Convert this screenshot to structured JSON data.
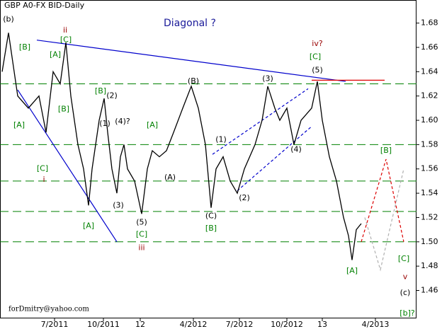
{
  "chart_data": {
    "type": "line",
    "header": "GBP A0-FX BID-Daily",
    "title": "Diagonal ?",
    "footer": "forDmitry@yahoo.com",
    "color": "#000000",
    "x": [
      3,
      12,
      25,
      40,
      55,
      65,
      75,
      85,
      93,
      100,
      110,
      118,
      125,
      130,
      135,
      140,
      147,
      152,
      158,
      165,
      170,
      175,
      180,
      190,
      200,
      208,
      215,
      225,
      235,
      245,
      258,
      270,
      280,
      290,
      298,
      305,
      315,
      325,
      335,
      345,
      360,
      370,
      378,
      388,
      395,
      405,
      415,
      425,
      440,
      448,
      455,
      465,
      475,
      485,
      492,
      497,
      503,
      510
    ],
    "values": [
      1.64,
      1.672,
      1.62,
      1.61,
      1.62,
      1.59,
      1.64,
      1.63,
      1.664,
      1.62,
      1.58,
      1.56,
      1.53,
      1.56,
      1.58,
      1.6,
      1.618,
      1.59,
      1.56,
      1.54,
      1.57,
      1.58,
      1.56,
      1.55,
      1.523,
      1.56,
      1.575,
      1.57,
      1.575,
      1.59,
      1.61,
      1.628,
      1.61,
      1.58,
      1.528,
      1.56,
      1.57,
      1.55,
      1.54,
      1.56,
      1.58,
      1.6,
      1.628,
      1.61,
      1.6,
      1.61,
      1.58,
      1.6,
      1.61,
      1.632,
      1.6,
      1.57,
      1.55,
      1.52,
      1.505,
      1.485,
      1.51,
      1.515
    ],
    "xlim": [
      0,
      588
    ],
    "ylim": [
      1.437,
      1.699
    ],
    "xticks": [
      {
        "value": 77,
        "label": "7/2011"
      },
      {
        "value": 146,
        "label": "10/2011"
      },
      {
        "value": 198,
        "label": "12"
      },
      {
        "value": 273,
        "label": "4/2012"
      },
      {
        "value": 338,
        "label": "7/2012"
      },
      {
        "value": 405,
        "label": "10/2012"
      },
      {
        "value": 455,
        "label": "13"
      },
      {
        "value": 530,
        "label": "4/2013"
      }
    ],
    "yticks": [
      {
        "value": 1.46,
        "label": "1.46"
      },
      {
        "value": 1.48,
        "label": "1.48"
      },
      {
        "value": 1.5,
        "label": "1.50"
      },
      {
        "value": 1.52,
        "label": "1.52"
      },
      {
        "value": 1.54,
        "label": "1.54"
      },
      {
        "value": 1.56,
        "label": "1.56"
      },
      {
        "value": 1.58,
        "label": "1.58"
      },
      {
        "value": 1.6,
        "label": "1.60"
      },
      {
        "value": 1.62,
        "label": "1.62"
      },
      {
        "value": 1.64,
        "label": "1.64"
      },
      {
        "value": 1.66,
        "label": "1.66"
      },
      {
        "value": 1.68,
        "label": "1.68"
      }
    ],
    "levels": {
      "color": "#008000",
      "values": [
        1.63,
        1.58,
        1.55,
        1.525,
        1.5
      ]
    },
    "lines": [
      {
        "color": "#0000cc",
        "dash": false,
        "x": [
          52,
          488
        ],
        "y": [
          1.666,
          1.632
        ]
      },
      {
        "color": "#0000cc",
        "dash": false,
        "x": [
          25,
          165
        ],
        "y": [
          1.625,
          1.5
        ]
      },
      {
        "color": "#0000cc",
        "dash": true,
        "x": [
          300,
          435
        ],
        "y": [
          1.572,
          1.626
        ]
      },
      {
        "color": "#0000cc",
        "dash": true,
        "x": [
          335,
          440
        ],
        "y": [
          1.542,
          1.595
        ]
      },
      {
        "color": "#dd0000",
        "dash": false,
        "x": [
          440,
          543
        ],
        "y": [
          1.633,
          1.633
        ]
      },
      {
        "color": "#dd0000",
        "dash": true,
        "x": [
          510,
          545,
          570
        ],
        "y": [
          1.5,
          1.568,
          1.5
        ]
      },
      {
        "color": "#b0b0b0",
        "dash": true,
        "x": [
          515,
          537,
          570
        ],
        "y": [
          1.52,
          1.477,
          1.56
        ]
      }
    ],
    "annotations": [
      {
        "text": "(b)",
        "x": 12,
        "y": 1.683,
        "color": "#000000"
      },
      {
        "text": "ii",
        "x": 92,
        "y": 1.674,
        "color": "#990000"
      },
      {
        "text": "[C]",
        "x": 93,
        "y": 1.666,
        "color": "#008000"
      },
      {
        "text": "[B]",
        "x": 35,
        "y": 1.66,
        "color": "#008000"
      },
      {
        "text": "[A]",
        "x": 78,
        "y": 1.654,
        "color": "#008000"
      },
      {
        "text": "[B]",
        "x": 142,
        "y": 1.624,
        "color": "#008000"
      },
      {
        "text": "(2)",
        "x": 158,
        "y": 1.62,
        "color": "#000000"
      },
      {
        "text": "[B]",
        "x": 90,
        "y": 1.609,
        "color": "#008000"
      },
      {
        "text": "[A]",
        "x": 27,
        "y": 1.596,
        "color": "#008000"
      },
      {
        "text": "[C]",
        "x": 60,
        "y": 1.56,
        "color": "#008000"
      },
      {
        "text": "i",
        "x": 62,
        "y": 1.551,
        "color": "#990000"
      },
      {
        "text": "(1)",
        "x": 148,
        "y": 1.597,
        "color": "#000000"
      },
      {
        "text": "(4)?",
        "x": 173,
        "y": 1.599,
        "color": "#000000"
      },
      {
        "text": "[A]",
        "x": 215,
        "y": 1.596,
        "color": "#008000"
      },
      {
        "text": "(A)",
        "x": 240,
        "y": 1.553,
        "color": "#000000"
      },
      {
        "text": "(3)",
        "x": 167,
        "y": 1.53,
        "color": "#000000"
      },
      {
        "text": "[A]",
        "x": 125,
        "y": 1.513,
        "color": "#008000"
      },
      {
        "text": "(5)",
        "x": 200,
        "y": 1.516,
        "color": "#000000"
      },
      {
        "text": "[C]",
        "x": 200,
        "y": 1.506,
        "color": "#008000"
      },
      {
        "text": "iii",
        "x": 200,
        "y": 1.495,
        "color": "#990000"
      },
      {
        "text": "(B)",
        "x": 273,
        "y": 1.632,
        "color": "#000000"
      },
      {
        "text": "(1)",
        "x": 312,
        "y": 1.584,
        "color": "#000000"
      },
      {
        "text": "(2)",
        "x": 345,
        "y": 1.536,
        "color": "#000000"
      },
      {
        "text": "(C)",
        "x": 298,
        "y": 1.521,
        "color": "#000000"
      },
      {
        "text": "[B]",
        "x": 298,
        "y": 1.511,
        "color": "#008000"
      },
      {
        "text": "(3)",
        "x": 378,
        "y": 1.634,
        "color": "#000000"
      },
      {
        "text": "(4)",
        "x": 418,
        "y": 1.576,
        "color": "#000000"
      },
      {
        "text": "(5)",
        "x": 448,
        "y": 1.641,
        "color": "#000000"
      },
      {
        "text": "iv?",
        "x": 448,
        "y": 1.663,
        "color": "#990000"
      },
      {
        "text": "[C]",
        "x": 445,
        "y": 1.652,
        "color": "#008000"
      },
      {
        "text": "[B]",
        "x": 545,
        "y": 1.575,
        "color": "#008000"
      },
      {
        "text": "[A]",
        "x": 497,
        "y": 1.476,
        "color": "#008000"
      },
      {
        "text": "[C]",
        "x": 570,
        "y": 1.486,
        "color": "#008000"
      },
      {
        "text": "v",
        "x": 572,
        "y": 1.471,
        "color": "#990000"
      },
      {
        "text": "(c)",
        "x": 572,
        "y": 1.458,
        "color": "#000000"
      },
      {
        "text": "[b]?",
        "x": 575,
        "y": 1.441,
        "color": "#008000"
      }
    ]
  }
}
